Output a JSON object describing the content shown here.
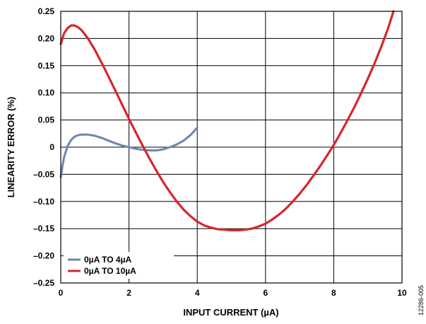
{
  "chart_data": {
    "type": "line",
    "xlabel": "INPUT CURRENT (µA)",
    "ylabel": "LINEARITY ERROR (%)",
    "xlim": [
      0,
      10
    ],
    "ylim": [
      -0.25,
      0.25
    ],
    "x_ticks": [
      "0",
      "2",
      "4",
      "6",
      "8",
      "10"
    ],
    "y_ticks": [
      "0.25",
      "0.20",
      "0.15",
      "0.10",
      "0.05",
      "0",
      "–0.05",
      "–0.10",
      "–0.15",
      "–0.20",
      "–0.25"
    ],
    "grid": true,
    "legend_position": "bottom-left",
    "figure_id": "12286-005",
    "series": [
      {
        "name": "0µA TO 4µA",
        "color": "#6d86ad",
        "x": [
          0.0,
          0.05,
          0.1,
          0.2,
          0.3,
          0.4,
          0.5,
          0.6,
          0.8,
          1.0,
          1.2,
          1.4,
          1.6,
          1.8,
          2.0,
          2.2,
          2.4,
          2.6,
          2.8,
          3.0,
          3.2,
          3.4,
          3.6,
          3.8,
          4.0
        ],
        "y": [
          -0.055,
          -0.035,
          -0.018,
          0.002,
          0.013,
          0.019,
          0.022,
          0.023,
          0.023,
          0.021,
          0.017,
          0.012,
          0.007,
          0.003,
          0.0,
          -0.003,
          -0.005,
          -0.006,
          -0.006,
          -0.004,
          0.0,
          0.005,
          0.012,
          0.022,
          0.036
        ]
      },
      {
        "name": "0µA TO 10µA",
        "color": "#d7262e",
        "x": [
          0.0,
          0.05,
          0.1,
          0.2,
          0.3,
          0.4,
          0.5,
          0.6,
          0.8,
          1.0,
          1.2,
          1.4,
          1.6,
          1.8,
          2.0,
          2.2,
          2.4,
          2.6,
          2.8,
          3.0,
          3.2,
          3.4,
          3.6,
          3.8,
          4.0,
          4.2,
          4.4,
          4.6,
          4.8,
          5.0,
          5.2,
          5.4,
          5.6,
          5.8,
          6.0,
          6.2,
          6.4,
          6.6,
          6.8,
          7.0,
          7.2,
          7.4,
          7.6,
          7.8,
          8.0,
          8.2,
          8.4,
          8.6,
          8.8,
          9.0,
          9.2,
          9.4,
          9.6,
          9.75
        ],
        "y": [
          0.19,
          0.2,
          0.21,
          0.219,
          0.224,
          0.224,
          0.221,
          0.216,
          0.2,
          0.179,
          0.155,
          0.13,
          0.104,
          0.078,
          0.052,
          0.027,
          0.003,
          -0.021,
          -0.043,
          -0.064,
          -0.083,
          -0.1,
          -0.115,
          -0.127,
          -0.137,
          -0.144,
          -0.148,
          -0.151,
          -0.152,
          -0.153,
          -0.153,
          -0.152,
          -0.15,
          -0.146,
          -0.141,
          -0.133,
          -0.124,
          -0.113,
          -0.1,
          -0.086,
          -0.07,
          -0.053,
          -0.035,
          -0.016,
          0.004,
          0.026,
          0.049,
          0.073,
          0.099,
          0.126,
          0.155,
          0.186,
          0.22,
          0.25
        ]
      }
    ]
  }
}
